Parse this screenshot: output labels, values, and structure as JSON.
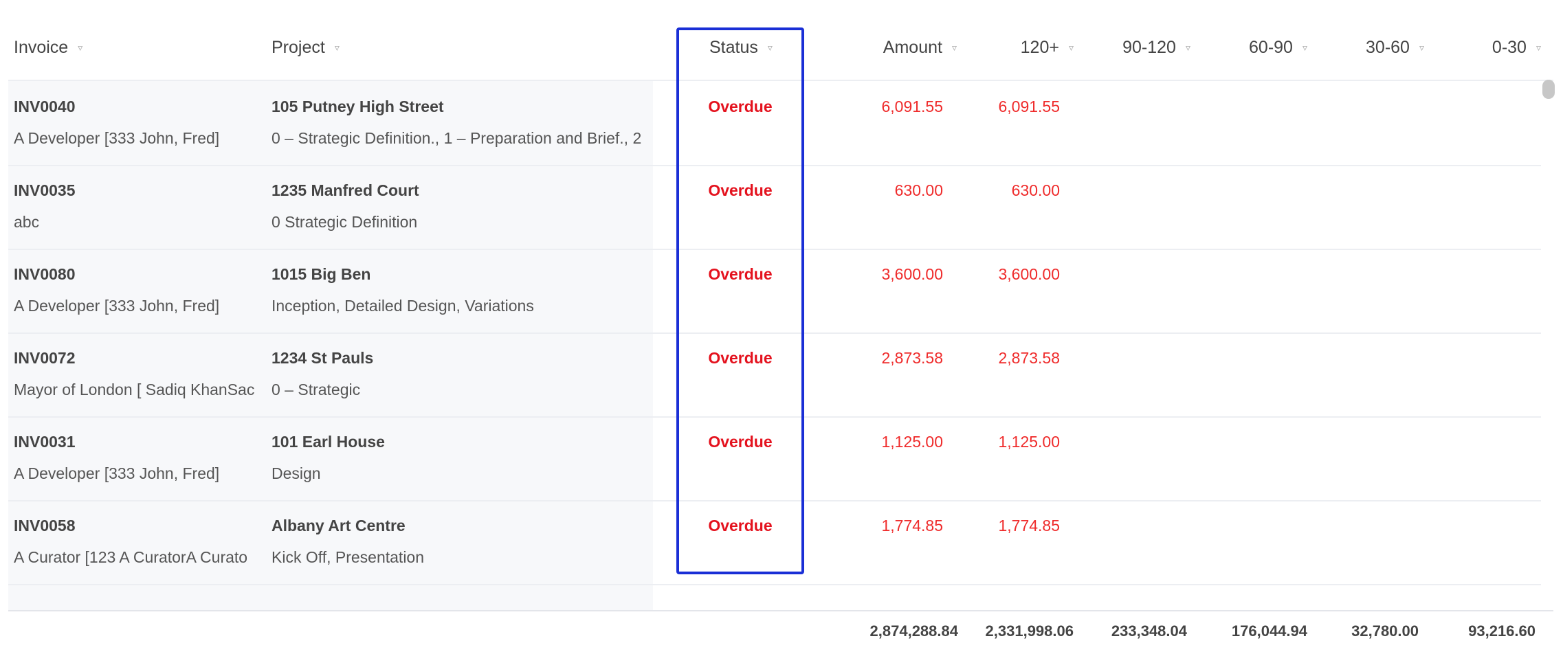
{
  "headers": {
    "invoice": "Invoice",
    "project": "Project",
    "status": "Status",
    "amount": "Amount",
    "b120": "120+",
    "b90": "90-120",
    "b60": "60-90",
    "b30": "30-60",
    "b0": "0-30",
    "sort_icon": "▿"
  },
  "rows": [
    {
      "invoice": "INV0040",
      "client": "A Developer [333 John, Fred]",
      "project": "105 Putney High Street",
      "stages": "0 – Strategic Definition., 1 – Preparation and Brief., 2",
      "status": "Overdue",
      "amount": "6,091.55",
      "b120": "6,091.55"
    },
    {
      "invoice": "INV0035",
      "client": "abc",
      "project": "1235 Manfred Court",
      "stages": "0 Strategic Definition",
      "status": "Overdue",
      "amount": "630.00",
      "b120": "630.00"
    },
    {
      "invoice": "INV0080",
      "client": "A Developer [333 John, Fred]",
      "project": "1015 Big Ben",
      "stages": "Inception, Detailed Design, Variations",
      "status": "Overdue",
      "amount": "3,600.00",
      "b120": "3,600.00"
    },
    {
      "invoice": "INV0072",
      "client": "Mayor of London [ Sadiq KhanSac",
      "project": "1234 St Pauls",
      "stages": "0 – Strategic",
      "status": "Overdue",
      "amount": "2,873.58",
      "b120": "2,873.58"
    },
    {
      "invoice": "INV0031",
      "client": "A Developer [333 John, Fred]",
      "project": "101 Earl House",
      "stages": "Design",
      "status": "Overdue",
      "amount": "1,125.00",
      "b120": "1,125.00"
    },
    {
      "invoice": "INV0058",
      "client": "A Curator [123 A CuratorA Curato",
      "project": "Albany Art Centre",
      "stages": "Kick Off, Presentation",
      "status": "Overdue",
      "amount": "1,774.85",
      "b120": "1,774.85"
    }
  ],
  "totals": {
    "amount": "2,874,288.84",
    "b120": "2,331,998.06",
    "b90": "233,348.04",
    "b60": "176,044.94",
    "b30": "32,780.00",
    "b0": "93,216.60"
  },
  "colors": {
    "overdue": "#e4121e",
    "highlight": "#1a2fd6"
  }
}
